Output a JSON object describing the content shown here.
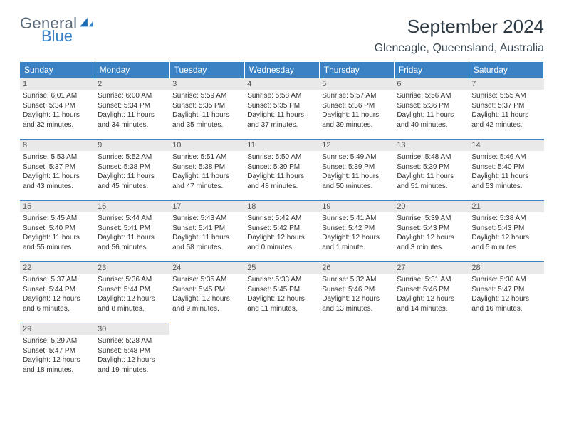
{
  "brand": {
    "word1": "General",
    "word2": "Blue",
    "icon_color": "#1f6db5"
  },
  "header": {
    "title": "September 2024",
    "location": "Gleneagle, Queensland, Australia"
  },
  "colors": {
    "header_bg": "#3a82c4",
    "header_text": "#ffffff",
    "daynum_bg": "#e9e9e9",
    "rule": "#3a82c4",
    "text": "#333333"
  },
  "weekdays": [
    "Sunday",
    "Monday",
    "Tuesday",
    "Wednesday",
    "Thursday",
    "Friday",
    "Saturday"
  ],
  "weeks": [
    [
      {
        "n": "1",
        "sr": "Sunrise: 6:01 AM",
        "ss": "Sunset: 5:34 PM",
        "d1": "Daylight: 11 hours",
        "d2": "and 32 minutes."
      },
      {
        "n": "2",
        "sr": "Sunrise: 6:00 AM",
        "ss": "Sunset: 5:34 PM",
        "d1": "Daylight: 11 hours",
        "d2": "and 34 minutes."
      },
      {
        "n": "3",
        "sr": "Sunrise: 5:59 AM",
        "ss": "Sunset: 5:35 PM",
        "d1": "Daylight: 11 hours",
        "d2": "and 35 minutes."
      },
      {
        "n": "4",
        "sr": "Sunrise: 5:58 AM",
        "ss": "Sunset: 5:35 PM",
        "d1": "Daylight: 11 hours",
        "d2": "and 37 minutes."
      },
      {
        "n": "5",
        "sr": "Sunrise: 5:57 AM",
        "ss": "Sunset: 5:36 PM",
        "d1": "Daylight: 11 hours",
        "d2": "and 39 minutes."
      },
      {
        "n": "6",
        "sr": "Sunrise: 5:56 AM",
        "ss": "Sunset: 5:36 PM",
        "d1": "Daylight: 11 hours",
        "d2": "and 40 minutes."
      },
      {
        "n": "7",
        "sr": "Sunrise: 5:55 AM",
        "ss": "Sunset: 5:37 PM",
        "d1": "Daylight: 11 hours",
        "d2": "and 42 minutes."
      }
    ],
    [
      {
        "n": "8",
        "sr": "Sunrise: 5:53 AM",
        "ss": "Sunset: 5:37 PM",
        "d1": "Daylight: 11 hours",
        "d2": "and 43 minutes."
      },
      {
        "n": "9",
        "sr": "Sunrise: 5:52 AM",
        "ss": "Sunset: 5:38 PM",
        "d1": "Daylight: 11 hours",
        "d2": "and 45 minutes."
      },
      {
        "n": "10",
        "sr": "Sunrise: 5:51 AM",
        "ss": "Sunset: 5:38 PM",
        "d1": "Daylight: 11 hours",
        "d2": "and 47 minutes."
      },
      {
        "n": "11",
        "sr": "Sunrise: 5:50 AM",
        "ss": "Sunset: 5:39 PM",
        "d1": "Daylight: 11 hours",
        "d2": "and 48 minutes."
      },
      {
        "n": "12",
        "sr": "Sunrise: 5:49 AM",
        "ss": "Sunset: 5:39 PM",
        "d1": "Daylight: 11 hours",
        "d2": "and 50 minutes."
      },
      {
        "n": "13",
        "sr": "Sunrise: 5:48 AM",
        "ss": "Sunset: 5:39 PM",
        "d1": "Daylight: 11 hours",
        "d2": "and 51 minutes."
      },
      {
        "n": "14",
        "sr": "Sunrise: 5:46 AM",
        "ss": "Sunset: 5:40 PM",
        "d1": "Daylight: 11 hours",
        "d2": "and 53 minutes."
      }
    ],
    [
      {
        "n": "15",
        "sr": "Sunrise: 5:45 AM",
        "ss": "Sunset: 5:40 PM",
        "d1": "Daylight: 11 hours",
        "d2": "and 55 minutes."
      },
      {
        "n": "16",
        "sr": "Sunrise: 5:44 AM",
        "ss": "Sunset: 5:41 PM",
        "d1": "Daylight: 11 hours",
        "d2": "and 56 minutes."
      },
      {
        "n": "17",
        "sr": "Sunrise: 5:43 AM",
        "ss": "Sunset: 5:41 PM",
        "d1": "Daylight: 11 hours",
        "d2": "and 58 minutes."
      },
      {
        "n": "18",
        "sr": "Sunrise: 5:42 AM",
        "ss": "Sunset: 5:42 PM",
        "d1": "Daylight: 12 hours",
        "d2": "and 0 minutes."
      },
      {
        "n": "19",
        "sr": "Sunrise: 5:41 AM",
        "ss": "Sunset: 5:42 PM",
        "d1": "Daylight: 12 hours",
        "d2": "and 1 minute."
      },
      {
        "n": "20",
        "sr": "Sunrise: 5:39 AM",
        "ss": "Sunset: 5:43 PM",
        "d1": "Daylight: 12 hours",
        "d2": "and 3 minutes."
      },
      {
        "n": "21",
        "sr": "Sunrise: 5:38 AM",
        "ss": "Sunset: 5:43 PM",
        "d1": "Daylight: 12 hours",
        "d2": "and 5 minutes."
      }
    ],
    [
      {
        "n": "22",
        "sr": "Sunrise: 5:37 AM",
        "ss": "Sunset: 5:44 PM",
        "d1": "Daylight: 12 hours",
        "d2": "and 6 minutes."
      },
      {
        "n": "23",
        "sr": "Sunrise: 5:36 AM",
        "ss": "Sunset: 5:44 PM",
        "d1": "Daylight: 12 hours",
        "d2": "and 8 minutes."
      },
      {
        "n": "24",
        "sr": "Sunrise: 5:35 AM",
        "ss": "Sunset: 5:45 PM",
        "d1": "Daylight: 12 hours",
        "d2": "and 9 minutes."
      },
      {
        "n": "25",
        "sr": "Sunrise: 5:33 AM",
        "ss": "Sunset: 5:45 PM",
        "d1": "Daylight: 12 hours",
        "d2": "and 11 minutes."
      },
      {
        "n": "26",
        "sr": "Sunrise: 5:32 AM",
        "ss": "Sunset: 5:46 PM",
        "d1": "Daylight: 12 hours",
        "d2": "and 13 minutes."
      },
      {
        "n": "27",
        "sr": "Sunrise: 5:31 AM",
        "ss": "Sunset: 5:46 PM",
        "d1": "Daylight: 12 hours",
        "d2": "and 14 minutes."
      },
      {
        "n": "28",
        "sr": "Sunrise: 5:30 AM",
        "ss": "Sunset: 5:47 PM",
        "d1": "Daylight: 12 hours",
        "d2": "and 16 minutes."
      }
    ],
    [
      {
        "n": "29",
        "sr": "Sunrise: 5:29 AM",
        "ss": "Sunset: 5:47 PM",
        "d1": "Daylight: 12 hours",
        "d2": "and 18 minutes."
      },
      {
        "n": "30",
        "sr": "Sunrise: 5:28 AM",
        "ss": "Sunset: 5:48 PM",
        "d1": "Daylight: 12 hours",
        "d2": "and 19 minutes."
      },
      null,
      null,
      null,
      null,
      null
    ]
  ]
}
